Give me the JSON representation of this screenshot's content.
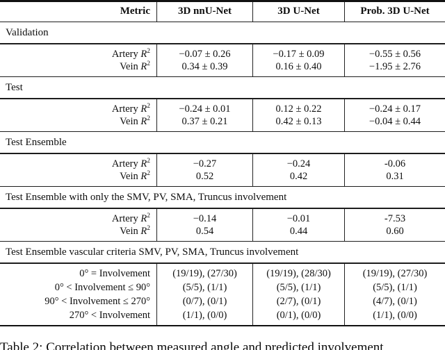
{
  "caption": {
    "text": "Table 2: Correlation between measured angle and predicted involvement"
  },
  "table": {
    "columns": [
      "Metric",
      "3D nnU-Net",
      "3D U-Net",
      "Prob. 3D U-Net"
    ],
    "sections": [
      {
        "title": "Validation",
        "rows": [
          {
            "label": "Artery",
            "math": {
              "symbol": "R",
              "sup": "2"
            },
            "values": [
              "−0.07 ± 0.26",
              "−0.17 ± 0.09",
              "−0.55 ± 0.56"
            ]
          },
          {
            "label": "Vein",
            "math": {
              "symbol": "R",
              "sup": "2"
            },
            "values": [
              "0.34 ± 0.39",
              "0.16 ± 0.40",
              "−1.95 ± 2.76"
            ]
          }
        ]
      },
      {
        "title": "Test",
        "rows": [
          {
            "label": "Artery",
            "math": {
              "symbol": "R",
              "sup": "2"
            },
            "values": [
              "−0.24 ± 0.01",
              "0.12 ± 0.22",
              "−0.24 ± 0.17"
            ]
          },
          {
            "label": "Vein",
            "math": {
              "symbol": "R",
              "sup": "2"
            },
            "values": [
              "0.37 ± 0.21",
              "0.42 ± 0.13",
              "−0.04 ± 0.44"
            ]
          }
        ]
      },
      {
        "title": "Test Ensemble",
        "rows": [
          {
            "label": "Artery",
            "math": {
              "symbol": "R",
              "sup": "2"
            },
            "values": [
              "−0.27",
              "−0.24",
              "-0.06"
            ]
          },
          {
            "label": "Vein",
            "math": {
              "symbol": "R",
              "sup": "2"
            },
            "values": [
              "0.52",
              "0.42",
              "0.31"
            ]
          }
        ]
      },
      {
        "title": "Test Ensemble with only the SMV, PV, SMA, Truncus involvement",
        "rows": [
          {
            "label": "Artery",
            "math": {
              "symbol": "R",
              "sup": "2"
            },
            "values": [
              "−0.14",
              "−0.01",
              "-7.53"
            ]
          },
          {
            "label": "Vein",
            "math": {
              "symbol": "R",
              "sup": "2"
            },
            "values": [
              "0.54",
              "0.44",
              "0.60"
            ]
          }
        ]
      },
      {
        "title": "Test Ensemble vascular criteria SMV, PV, SMA, Truncus involvement",
        "rows": [
          {
            "label": "0° = Involvement",
            "values": [
              "(19/19), (27/30)",
              "(19/19), (28/30)",
              "(19/19), (27/30)"
            ]
          },
          {
            "label": "0° < Involvement ≤ 90°",
            "values": [
              "(5/5), (1/1)",
              "(5/5), (1/1)",
              "(5/5), (1/1)"
            ]
          },
          {
            "label": "90° < Involvement ≤ 270°",
            "values": [
              "(0/7), (0/1)",
              "(2/7), (0/1)",
              "(4/7), (0/1)"
            ]
          },
          {
            "label": "270° < Involvement",
            "values": [
              "(1/1), (0/0)",
              "(0/1), (0/0)",
              "(1/1), (0/0)"
            ]
          }
        ]
      }
    ]
  }
}
